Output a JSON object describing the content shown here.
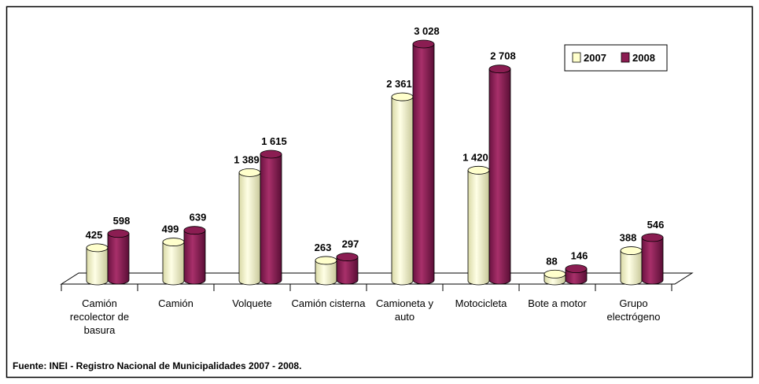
{
  "chart_data": {
    "type": "bar",
    "categories": [
      "Camión recolector de basura",
      "Camión",
      "Volquete",
      "Camión cisterna",
      "Camioneta y auto",
      "Motocicleta",
      "Bote a motor",
      "Grupo electrógeno"
    ],
    "series": [
      {
        "name": "2007",
        "color": "#ffffcc",
        "values": [
          425,
          499,
          1389,
          263,
          2361,
          1420,
          88,
          388
        ],
        "value_labels": [
          "425",
          "499",
          "1 389",
          "263",
          "2 361",
          "1 420",
          "88",
          "388"
        ]
      },
      {
        "name": "2008",
        "color": "#8b1d52",
        "values": [
          598,
          639,
          1615,
          297,
          3028,
          2708,
          146,
          546
        ],
        "value_labels": [
          "598",
          "639",
          "1 615",
          "297",
          "3 028",
          "2 708",
          "146",
          "546"
        ]
      }
    ],
    "legend": "top-right",
    "source": "Fuente: INEI - Registro Nacional de Municipalidades 2007 - 2008."
  }
}
